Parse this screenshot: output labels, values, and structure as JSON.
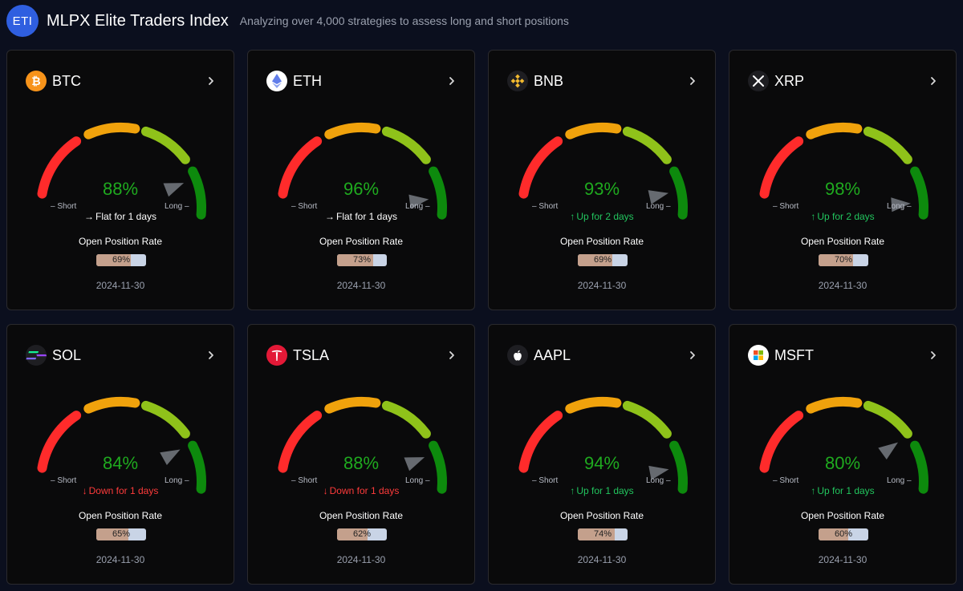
{
  "header": {
    "logo_text": "ETI",
    "title": "MLPX Elite Traders Index",
    "subtitle": "Analyzing over 4,000 strategies to assess long and short positions"
  },
  "labels": {
    "short": "– Short",
    "long": "Long –",
    "open_position_rate": "Open Position Rate"
  },
  "colors": {
    "background": "#0b0f1e",
    "card": "#0a0a0b",
    "gauge_red": "#ff2b2b",
    "gauge_orange": "#f0a20c",
    "gauge_lightgreen": "#8fc21a",
    "gauge_green": "#0d8a0d",
    "percent_green": "#1faa1f",
    "trend_flat": "#ffffff",
    "trend_up": "#22c55e",
    "trend_down": "#ff3b3b",
    "rate_fill": "#c4a08c",
    "rate_track": "#c9d4e6"
  },
  "cards": [
    {
      "symbol": "BTC",
      "icon": "bitcoin-icon",
      "percent": "88%",
      "percent_value": 88,
      "trend_dir": "flat",
      "trend_arrow": "→",
      "trend_text": "Flat for 1 days",
      "rate": "69%",
      "rate_value": 69,
      "date": "2024-11-30"
    },
    {
      "symbol": "ETH",
      "icon": "ethereum-icon",
      "percent": "96%",
      "percent_value": 96,
      "trend_dir": "flat",
      "trend_arrow": "→",
      "trend_text": "Flat for 1 days",
      "rate": "73%",
      "rate_value": 73,
      "date": "2024-11-30"
    },
    {
      "symbol": "BNB",
      "icon": "bnb-icon",
      "percent": "93%",
      "percent_value": 93,
      "trend_dir": "up",
      "trend_arrow": "↑",
      "trend_text": "Up for 2 days",
      "rate": "69%",
      "rate_value": 69,
      "date": "2024-11-30"
    },
    {
      "symbol": "XRP",
      "icon": "xrp-icon",
      "percent": "98%",
      "percent_value": 98,
      "trend_dir": "up",
      "trend_arrow": "↑",
      "trend_text": "Up for 2 days",
      "rate": "70%",
      "rate_value": 70,
      "date": "2024-11-30"
    },
    {
      "symbol": "SOL",
      "icon": "solana-icon",
      "percent": "84%",
      "percent_value": 84,
      "trend_dir": "down",
      "trend_arrow": "↓",
      "trend_text": "Down for 1 days",
      "rate": "65%",
      "rate_value": 65,
      "date": "2024-11-30"
    },
    {
      "symbol": "TSLA",
      "icon": "tesla-icon",
      "percent": "88%",
      "percent_value": 88,
      "trend_dir": "down",
      "trend_arrow": "↓",
      "trend_text": "Down for 1 days",
      "rate": "62%",
      "rate_value": 62,
      "date": "2024-11-30"
    },
    {
      "symbol": "AAPL",
      "icon": "apple-icon",
      "percent": "94%",
      "percent_value": 94,
      "trend_dir": "up",
      "trend_arrow": "↑",
      "trend_text": "Up for 1 days",
      "rate": "74%",
      "rate_value": 74,
      "date": "2024-11-30"
    },
    {
      "symbol": "MSFT",
      "icon": "microsoft-icon",
      "percent": "80%",
      "percent_value": 80,
      "trend_dir": "up",
      "trend_arrow": "↑",
      "trend_text": "Up for 1 days",
      "rate": "60%",
      "rate_value": 60,
      "date": "2024-11-30"
    }
  ]
}
